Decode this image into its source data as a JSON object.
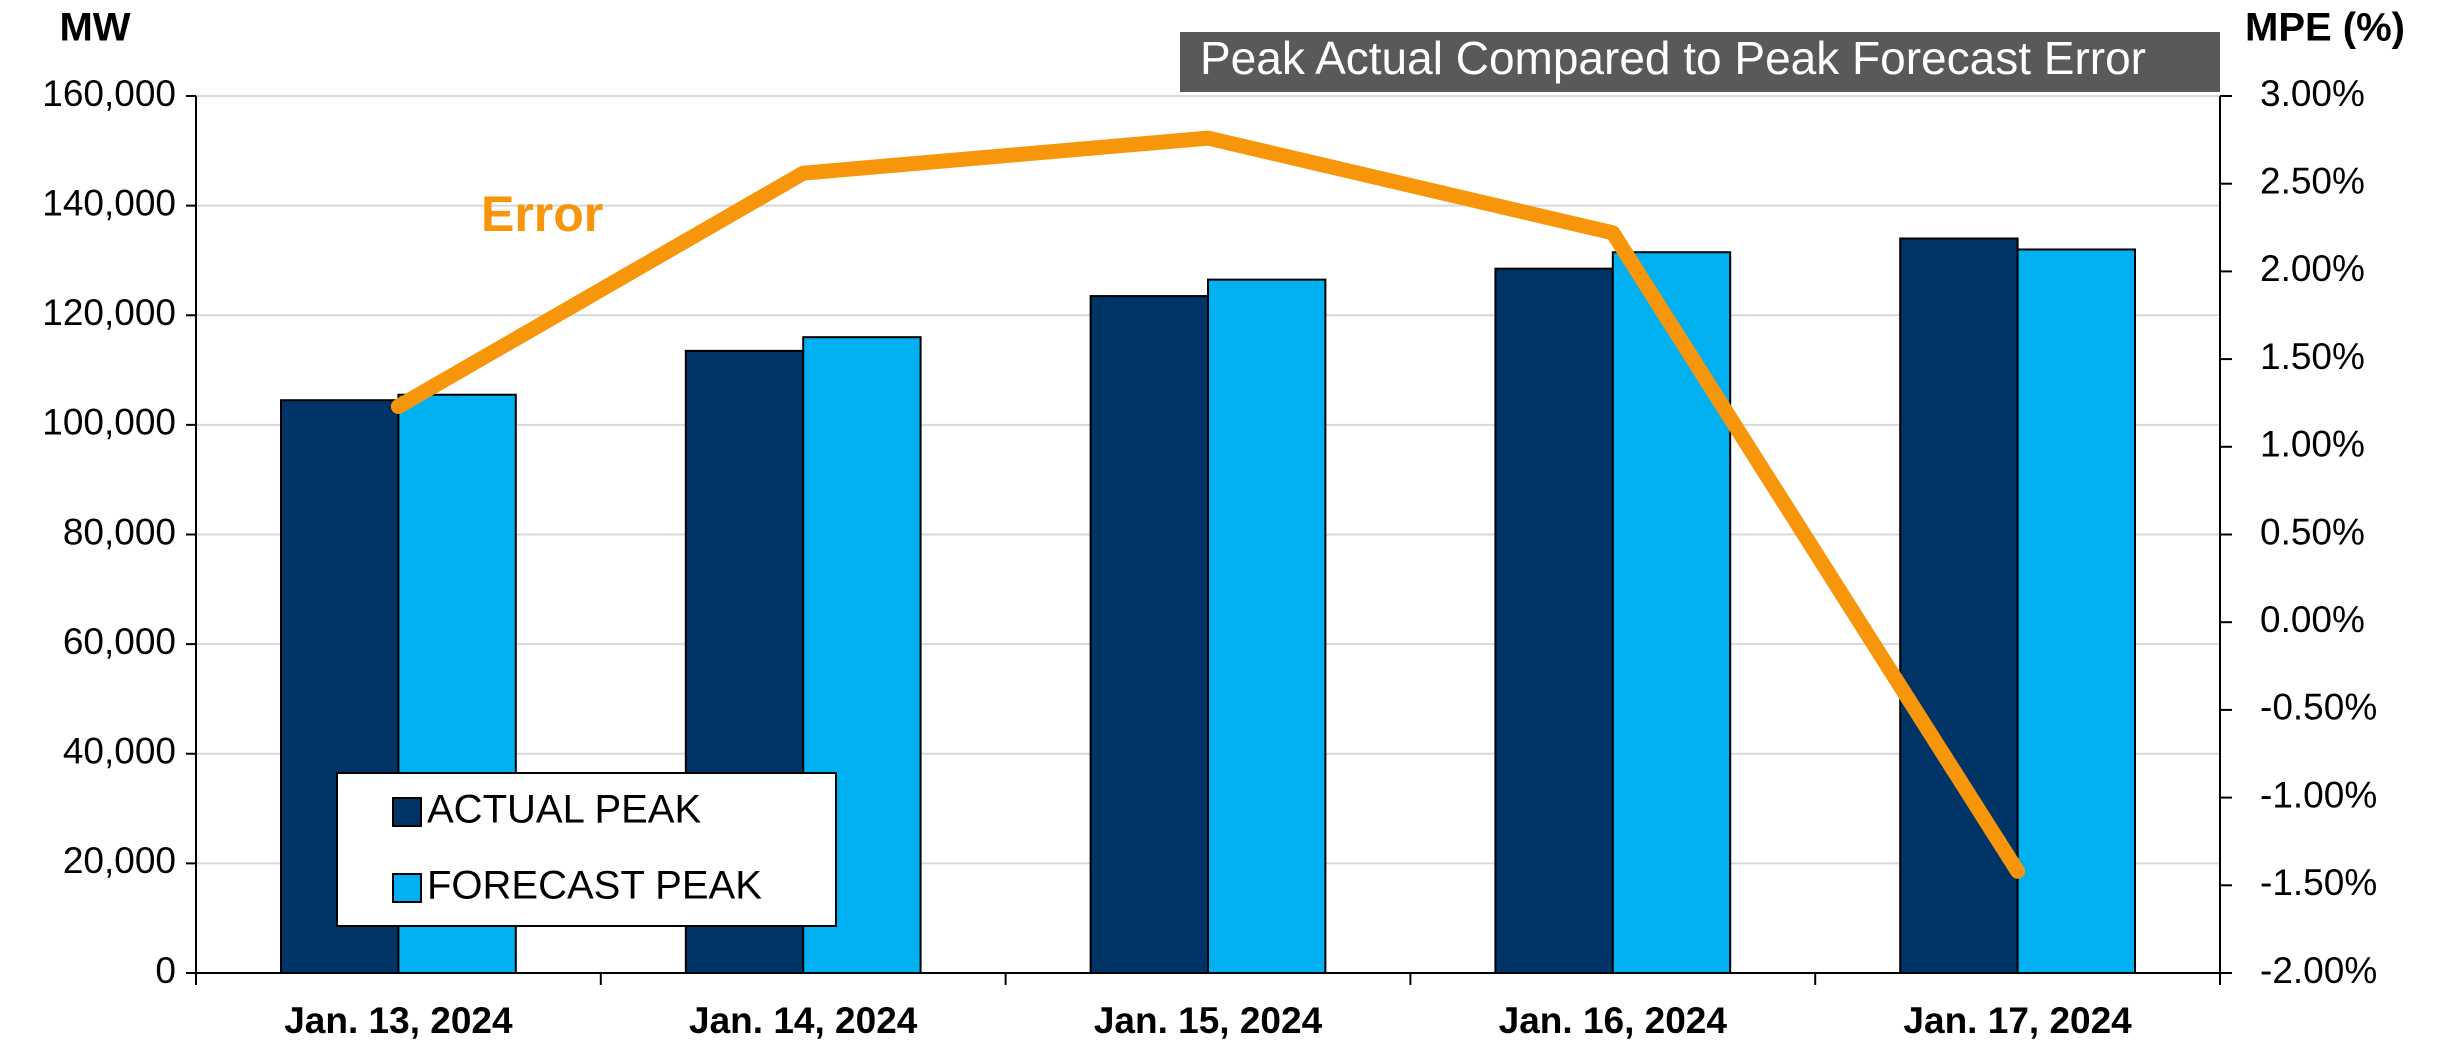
{
  "chart_data": {
    "type": "bar",
    "title": "Peak Actual Compared to Peak Forecast Error",
    "y_label": "MW",
    "y2_label": "MPE (%)",
    "categories": [
      "Jan. 13, 2024",
      "Jan. 14, 2024",
      "Jan. 15, 2024",
      "Jan. 16, 2024",
      "Jan. 17, 2024"
    ],
    "series": [
      {
        "name": "ACTUAL PEAK",
        "color": "#003366",
        "type": "bar",
        "values": [
          104500,
          113500,
          123500,
          128500,
          134000
        ]
      },
      {
        "name": "FORECAST PEAK",
        "color": "#00b0f0",
        "type": "bar",
        "values": [
          105500,
          116000,
          126500,
          131500,
          132000
        ]
      },
      {
        "name": "Error",
        "color": "#f7960a",
        "type": "line",
        "axis": "y2",
        "values": [
          1.23,
          2.56,
          2.76,
          2.22,
          -1.42
        ]
      }
    ],
    "ylim": [
      0,
      160000
    ],
    "yticks": [
      0,
      {
        "value": 20000,
        "label": "20,000"
      },
      {
        "value": 40000,
        "label": "40,000"
      },
      {
        "value": 60000,
        "label": "60,000"
      },
      {
        "value": 80000,
        "label": "80,000"
      },
      {
        "value": 100000,
        "label": "100,000"
      },
      {
        "value": 120000,
        "label": "120,000"
      },
      {
        "value": 140000,
        "label": "140,000"
      },
      {
        "value": 160000,
        "label": "160,000"
      }
    ],
    "y2lim": [
      -2,
      3
    ],
    "y2ticks": [
      {
        "value": -2,
        "label": "-2.00%"
      },
      {
        "value": -1.5,
        "label": "-1.50%"
      },
      {
        "value": -1,
        "label": "-1.00%"
      },
      {
        "value": -0.5,
        "label": "-0.50%"
      },
      {
        "value": 0,
        "label": "0.00%"
      },
      {
        "value": 0.5,
        "label": "0.50%"
      },
      {
        "value": 1,
        "label": "1.00%"
      },
      {
        "value": 1.5,
        "label": "1.50%"
      },
      {
        "value": 2,
        "label": "2.00%"
      },
      {
        "value": 2.5,
        "label": "2.50%"
      },
      {
        "value": 3,
        "label": "3.00%"
      }
    ],
    "grid": true,
    "legend": "lower left"
  }
}
